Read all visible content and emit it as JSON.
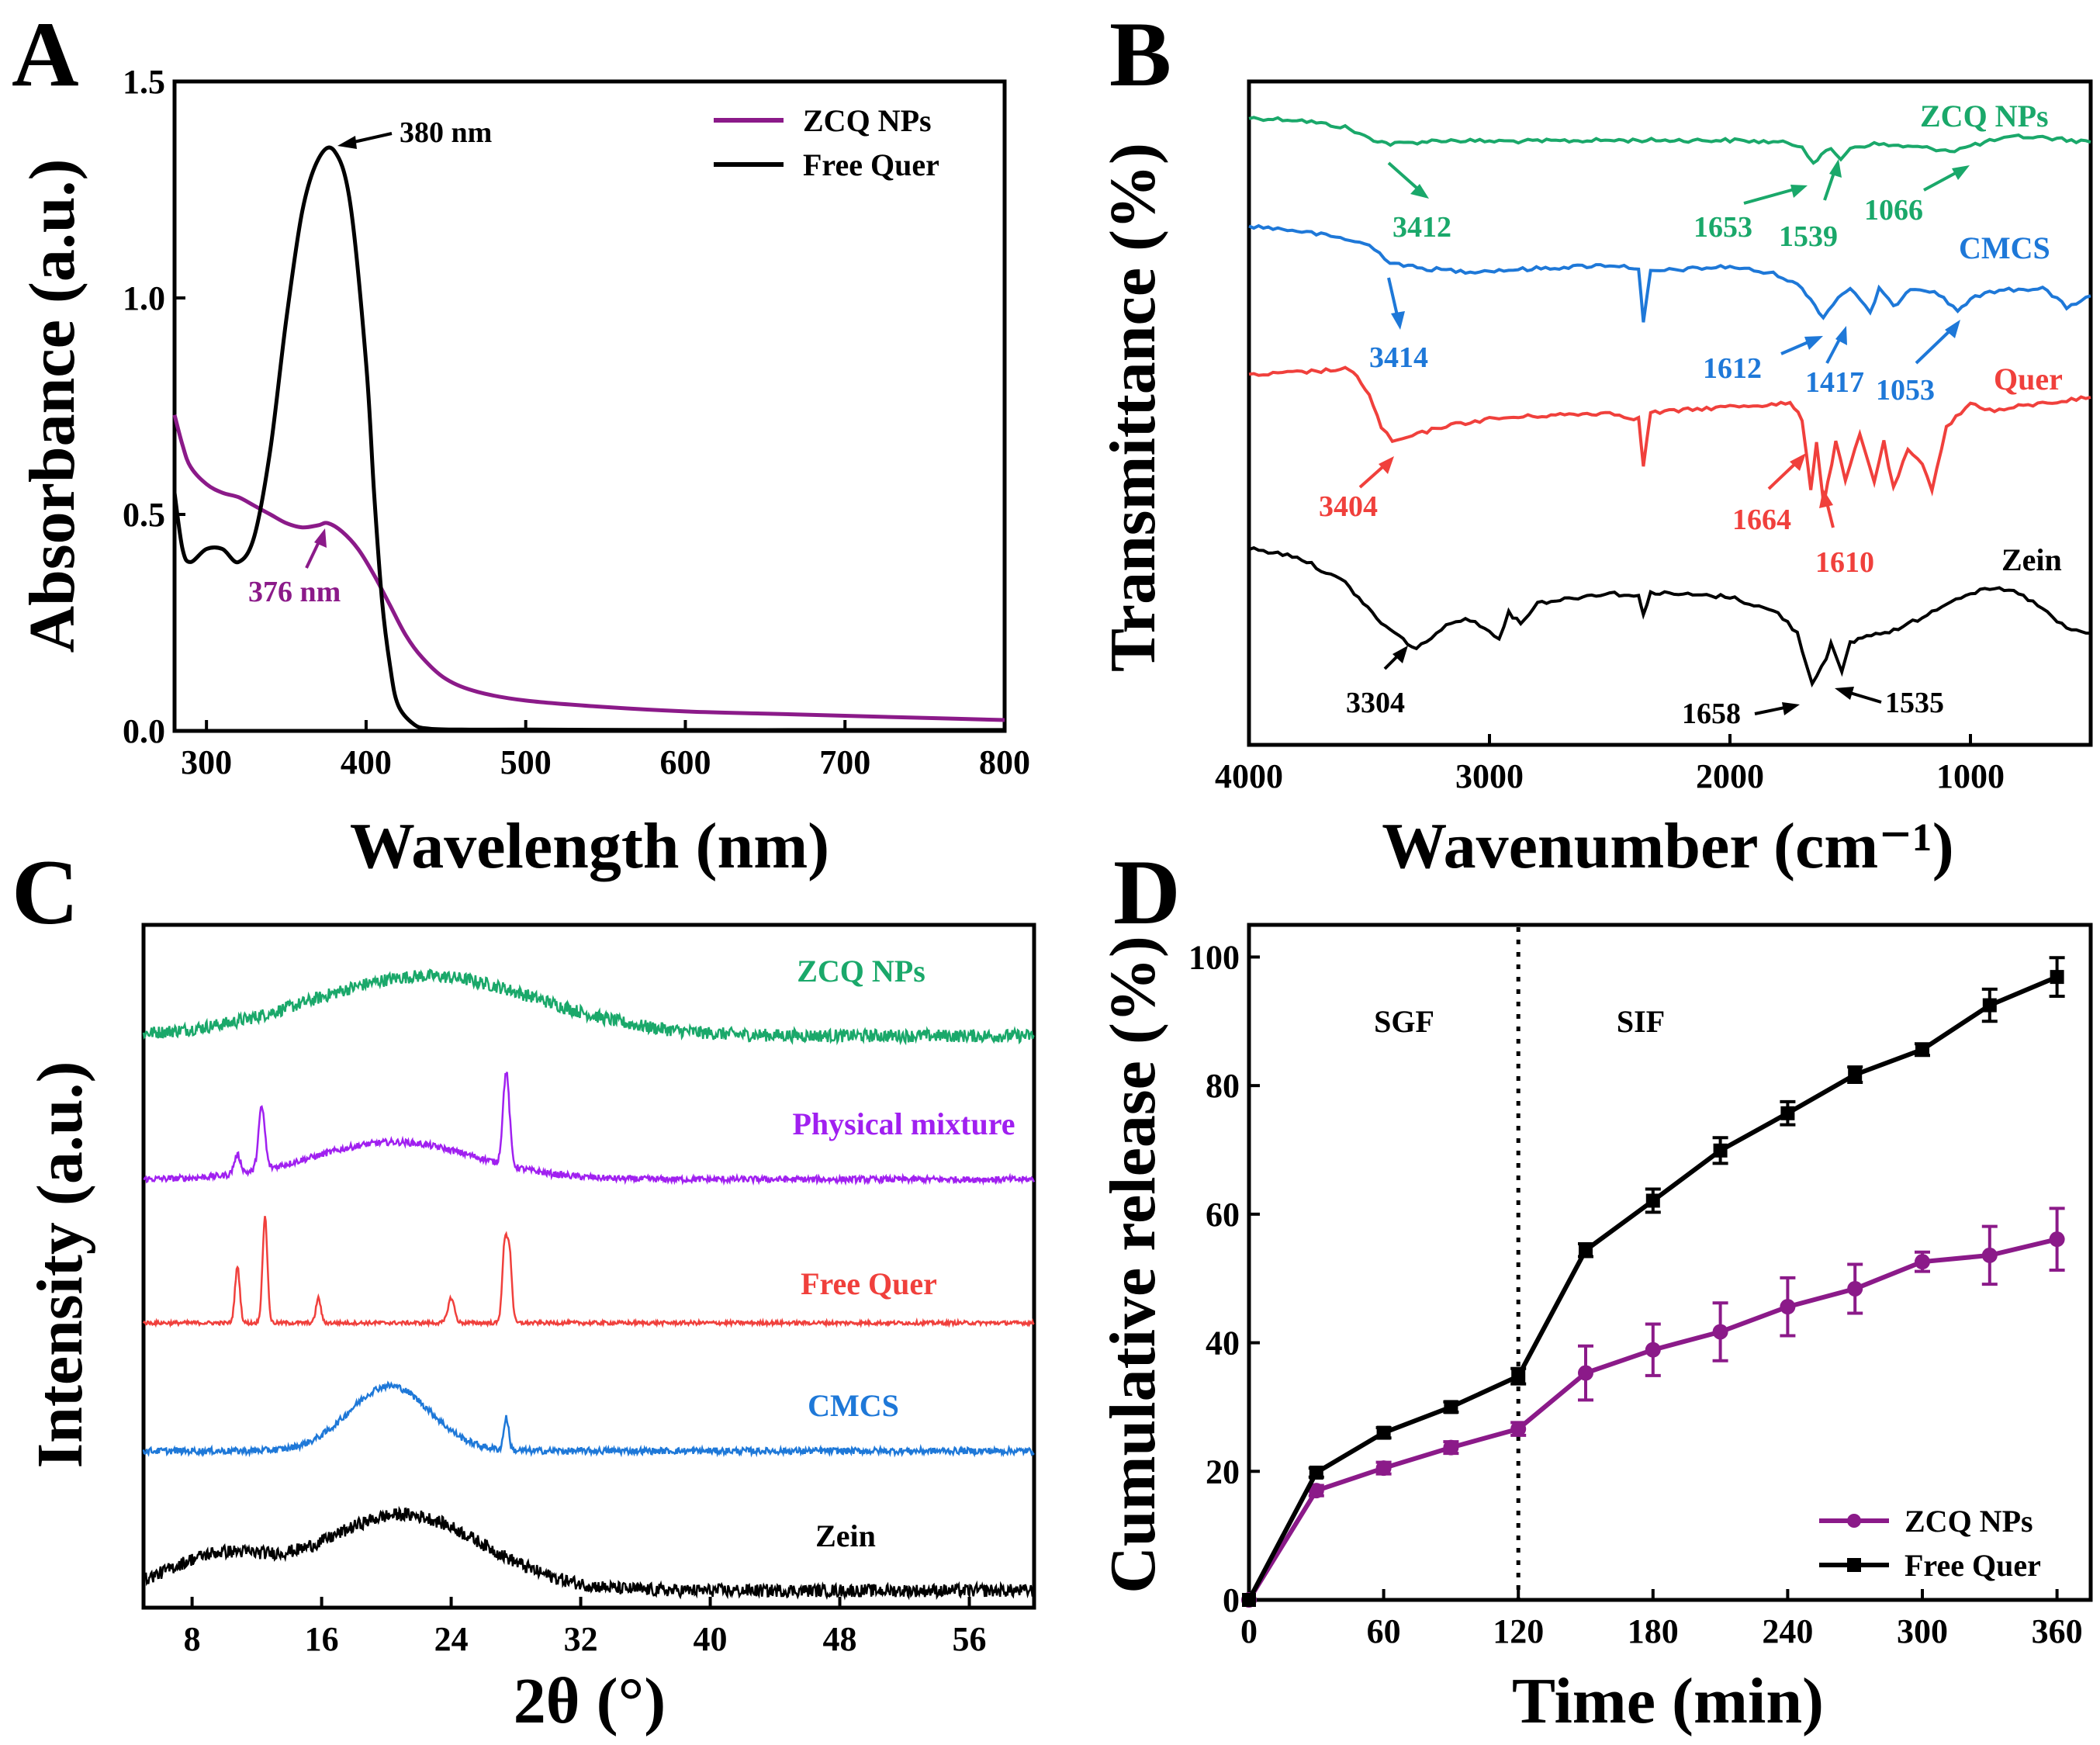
{
  "chart_data": [
    {
      "panel": "A",
      "type": "line",
      "xlabel": "Wavelength (nm)",
      "ylabel": "Absorbance (a.u.)",
      "xlim": [
        280,
        800
      ],
      "ylim": [
        -0.05,
        1.5
      ],
      "xticks": [
        300,
        400,
        500,
        600,
        700,
        800
      ],
      "yticks": [
        0.0,
        0.5,
        1.0,
        1.5
      ],
      "xtick_labels": [
        "300",
        "400",
        "500",
        "600",
        "700",
        "800"
      ],
      "ytick_labels": [
        "0.0",
        "0.5",
        "1.0",
        "1.5"
      ],
      "legend": {
        "position": "top-right"
      },
      "series": [
        {
          "name": "ZCQ NPs",
          "color": "#8b1a89",
          "x": [
            280,
            285,
            290,
            300,
            310,
            320,
            330,
            340,
            350,
            360,
            370,
            376,
            385,
            395,
            405,
            415,
            425,
            435,
            450,
            470,
            500,
            550,
            600,
            650,
            700,
            750,
            800
          ],
          "y": [
            0.73,
            0.66,
            0.61,
            0.57,
            0.55,
            0.54,
            0.52,
            0.5,
            0.48,
            0.47,
            0.475,
            0.48,
            0.46,
            0.42,
            0.36,
            0.29,
            0.22,
            0.17,
            0.12,
            0.09,
            0.07,
            0.055,
            0.045,
            0.04,
            0.035,
            0.03,
            0.025
          ]
        },
        {
          "name": "Free Quer",
          "color": "#000000",
          "x": [
            280,
            285,
            290,
            300,
            310,
            320,
            330,
            340,
            350,
            360,
            370,
            380,
            390,
            400,
            405,
            410,
            415,
            420,
            430,
            440,
            460,
            500,
            600,
            700,
            800
          ],
          "y": [
            0.55,
            0.42,
            0.39,
            0.42,
            0.42,
            0.39,
            0.45,
            0.65,
            0.95,
            1.2,
            1.32,
            1.34,
            1.22,
            0.85,
            0.55,
            0.3,
            0.15,
            0.06,
            0.015,
            0.005,
            0.003,
            0.003,
            0.002,
            0.002,
            0.002
          ]
        }
      ],
      "annotations": [
        {
          "text": "380 nm",
          "x": 380,
          "y": 1.34,
          "color": "#000000"
        },
        {
          "text": "376 nm",
          "x": 376,
          "y": 0.48,
          "color": "#8b1a89"
        }
      ]
    },
    {
      "panel": "B",
      "type": "line",
      "xlabel": "Wavenumber (cm⁻¹)",
      "ylabel": "Transmittance (%)",
      "xlim": [
        4000,
        500
      ],
      "xticks": [
        4000,
        3000,
        2000,
        1000
      ],
      "xtick_labels": [
        "4000",
        "3000",
        "2000",
        "1000"
      ],
      "yticks_shown": false,
      "series": [
        {
          "name": "ZCQ NPs",
          "color": "#1aa86a",
          "x": [
            4000,
            3800,
            3600,
            3500,
            3412,
            3300,
            3200,
            3000,
            2800,
            2500,
            2000,
            1800,
            1700,
            1653,
            1620,
            1580,
            1539,
            1500,
            1400,
            1300,
            1200,
            1066,
            1000,
            900,
            800,
            700,
            500
          ],
          "y": [
            0.9,
            0.88,
            0.8,
            0.68,
            0.62,
            0.64,
            0.66,
            0.65,
            0.65,
            0.66,
            0.66,
            0.64,
            0.6,
            0.42,
            0.5,
            0.56,
            0.46,
            0.58,
            0.62,
            0.6,
            0.58,
            0.55,
            0.6,
            0.66,
            0.7,
            0.69,
            0.64
          ]
        },
        {
          "name": "CMCS",
          "color": "#1e78d8",
          "x": [
            4000,
            3800,
            3600,
            3500,
            3414,
            3300,
            3100,
            2900,
            2500,
            2380,
            2360,
            2330,
            2000,
            1800,
            1700,
            1612,
            1550,
            1500,
            1417,
            1380,
            1320,
            1250,
            1150,
            1053,
            1000,
            900,
            700,
            600,
            500
          ],
          "y": [
            0.9,
            0.87,
            0.82,
            0.78,
            0.68,
            0.64,
            0.62,
            0.63,
            0.66,
            0.64,
            0.3,
            0.62,
            0.65,
            0.6,
            0.52,
            0.34,
            0.46,
            0.52,
            0.36,
            0.52,
            0.4,
            0.52,
            0.5,
            0.38,
            0.45,
            0.5,
            0.52,
            0.4,
            0.47
          ]
        },
        {
          "name": "Quer",
          "color": "#f0403c",
          "x": [
            4000,
            3800,
            3600,
            3550,
            3500,
            3450,
            3404,
            3300,
            3200,
            3000,
            2800,
            2500,
            2380,
            2360,
            2330,
            2000,
            1750,
            1700,
            1664,
            1640,
            1610,
            1560,
            1520,
            1460,
            1400,
            1360,
            1320,
            1260,
            1200,
            1160,
            1100,
            1000,
            900,
            800,
            700,
            600,
            500
          ],
          "y": [
            0.88,
            0.9,
            0.92,
            0.88,
            0.75,
            0.55,
            0.45,
            0.5,
            0.55,
            0.6,
            0.62,
            0.64,
            0.6,
            0.3,
            0.64,
            0.68,
            0.7,
            0.6,
            0.15,
            0.45,
            0.05,
            0.45,
            0.2,
            0.5,
            0.2,
            0.45,
            0.15,
            0.4,
            0.3,
            0.15,
            0.55,
            0.7,
            0.65,
            0.68,
            0.7,
            0.72,
            0.74
          ]
        },
        {
          "name": "Zein",
          "color": "#000000",
          "x": [
            4000,
            3800,
            3600,
            3450,
            3304,
            3200,
            3100,
            2960,
            2920,
            2870,
            2800,
            2500,
            2380,
            2360,
            2330,
            2000,
            1800,
            1720,
            1658,
            1600,
            1580,
            1535,
            1500,
            1450,
            1300,
            1200,
            1100,
            1000,
            900,
            800,
            700,
            600,
            500
          ],
          "y": [
            0.82,
            0.78,
            0.65,
            0.45,
            0.32,
            0.42,
            0.48,
            0.38,
            0.5,
            0.45,
            0.55,
            0.6,
            0.58,
            0.5,
            0.6,
            0.58,
            0.5,
            0.4,
            0.15,
            0.28,
            0.35,
            0.2,
            0.35,
            0.38,
            0.42,
            0.48,
            0.55,
            0.6,
            0.62,
            0.6,
            0.52,
            0.42,
            0.4
          ]
        }
      ],
      "annotations": [
        {
          "text": "3412",
          "color": "#1aa86a"
        },
        {
          "text": "1653",
          "color": "#1aa86a"
        },
        {
          "text": "1539",
          "color": "#1aa86a"
        },
        {
          "text": "1066",
          "color": "#1aa86a"
        },
        {
          "text": "3414",
          "color": "#1e78d8"
        },
        {
          "text": "1612",
          "color": "#1e78d8"
        },
        {
          "text": "1417",
          "color": "#1e78d8"
        },
        {
          "text": "1053",
          "color": "#1e78d8"
        },
        {
          "text": "3404",
          "color": "#f0403c"
        },
        {
          "text": "1664",
          "color": "#f0403c"
        },
        {
          "text": "1610",
          "color": "#f0403c"
        },
        {
          "text": "3304",
          "color": "#000000"
        },
        {
          "text": "1658",
          "color": "#000000"
        },
        {
          "text": "1535",
          "color": "#000000"
        }
      ]
    },
    {
      "panel": "C",
      "type": "line",
      "xlabel": "2θ (°)",
      "ylabel": "Intensity (a.u.)",
      "xlim": [
        5,
        60
      ],
      "xticks": [
        8,
        16,
        24,
        32,
        40,
        48,
        56
      ],
      "xtick_labels": [
        "8",
        "16",
        "24",
        "32",
        "40",
        "48",
        "56"
      ],
      "yticks_shown": false,
      "series": [
        {
          "name": "ZCQ NPs",
          "color": "#1aa86a",
          "peaks": [
            {
              "x": 22.5,
              "height": 0.55,
              "width": 7
            }
          ],
          "noise": 0.12
        },
        {
          "name": "Physical mixture",
          "color": "#a020f0",
          "peaks": [
            {
              "x": 20.5,
              "height": 0.3,
              "width": 5
            },
            {
              "x": 12.3,
              "height": 0.5,
              "width": 0.2
            },
            {
              "x": 10.8,
              "height": 0.15,
              "width": 0.2
            },
            {
              "x": 27.4,
              "height": 0.75,
              "width": 0.2
            }
          ],
          "noise": 0.05
        },
        {
          "name": "Free Quer",
          "color": "#f0403c",
          "peaks": [
            {
              "x": 10.8,
              "height": 0.45,
              "width": 0.15
            },
            {
              "x": 12.5,
              "height": 0.85,
              "width": 0.15
            },
            {
              "x": 15.8,
              "height": 0.2,
              "width": 0.15
            },
            {
              "x": 24.0,
              "height": 0.2,
              "width": 0.2
            },
            {
              "x": 27.3,
              "height": 0.6,
              "width": 0.15
            },
            {
              "x": 27.6,
              "height": 0.55,
              "width": 0.15
            }
          ],
          "noise": 0.03
        },
        {
          "name": "CMCS",
          "color": "#1e78d8",
          "peaks": [
            {
              "x": 20.2,
              "height": 0.6,
              "width": 2.5
            },
            {
              "x": 27.4,
              "height": 0.3,
              "width": 0.15
            }
          ],
          "noise": 0.06
        },
        {
          "name": "Zein",
          "color": "#000000",
          "peaks": [
            {
              "x": 9.5,
              "height": 0.3,
              "width": 3
            },
            {
              "x": 21,
              "height": 0.7,
              "width": 5
            }
          ],
          "noise": 0.12
        }
      ]
    },
    {
      "panel": "D",
      "type": "line",
      "xlabel": "Time (min)",
      "ylabel": "Cumulative release (%)",
      "xlim": [
        0,
        375
      ],
      "ylim": [
        0,
        105
      ],
      "xticks": [
        0,
        60,
        120,
        180,
        240,
        300,
        360
      ],
      "yticks": [
        0,
        20,
        40,
        60,
        80,
        100
      ],
      "xtick_labels": [
        "0",
        "60",
        "120",
        "180",
        "240",
        "300",
        "360"
      ],
      "ytick_labels": [
        "0",
        "20",
        "40",
        "60",
        "80",
        "100"
      ],
      "legend": {
        "position": "bottom-right"
      },
      "vline": {
        "x": 120,
        "style": "dotted"
      },
      "region_labels": [
        "SGF",
        "SIF"
      ],
      "series": [
        {
          "name": "ZCQ NPs",
          "color": "#8b1a89",
          "marker": "circle",
          "x": [
            0,
            30,
            60,
            90,
            120,
            150,
            180,
            210,
            240,
            270,
            300,
            330,
            360
          ],
          "y": [
            0,
            17,
            20.5,
            23.7,
            26.6,
            35.3,
            38.9,
            41.7,
            45.6,
            48.4,
            52.6,
            53.6,
            56.1
          ],
          "err": [
            0,
            0.8,
            0.9,
            0.9,
            1.0,
            4.2,
            4.0,
            4.5,
            4.5,
            3.8,
            1.5,
            4.5,
            4.8
          ]
        },
        {
          "name": "Free Quer",
          "color": "#000000",
          "marker": "square",
          "x": [
            0,
            30,
            60,
            90,
            120,
            150,
            180,
            210,
            240,
            270,
            300,
            330,
            360
          ],
          "y": [
            0,
            19.8,
            26,
            30,
            34.8,
            54.4,
            62.1,
            69.9,
            75.7,
            81.7,
            85.6,
            92.5,
            96.9
          ],
          "err": [
            0,
            0.7,
            0.8,
            0.8,
            1.2,
            1.0,
            1.8,
            2.0,
            1.8,
            1.2,
            0.9,
            2.5,
            3.0
          ]
        }
      ]
    }
  ],
  "panels": {
    "A": {
      "letter": "A"
    },
    "B": {
      "letter": "B"
    },
    "C": {
      "letter": "C"
    },
    "D": {
      "letter": "D"
    }
  },
  "colors": {
    "purple": "#8b1a89",
    "green": "#1aa86a",
    "blue": "#1e78d8",
    "red": "#f0403c",
    "violet": "#a020f0",
    "black": "#000000"
  }
}
